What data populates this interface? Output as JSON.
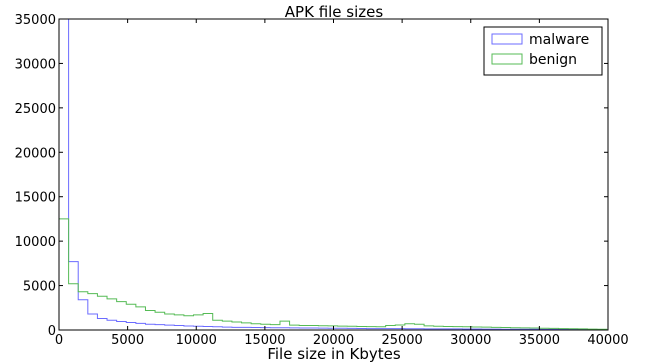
{
  "chart_data": {
    "type": "histogram",
    "title": "APK file sizes",
    "xlabel": "File size in Kbytes",
    "ylabel": "",
    "xlim": [
      0,
      40000
    ],
    "ylim": [
      0,
      35000
    ],
    "xticks": [
      0,
      5000,
      10000,
      15000,
      20000,
      25000,
      30000,
      35000,
      40000
    ],
    "yticks": [
      0,
      5000,
      10000,
      15000,
      20000,
      25000,
      30000,
      35000
    ],
    "grid": false,
    "legend_position": "top-right",
    "bin_width": 700,
    "series": [
      {
        "name": "malware",
        "color": "#6b6bff",
        "values": [
          35000,
          7700,
          3400,
          1800,
          1300,
          1100,
          950,
          850,
          750,
          650,
          600,
          550,
          500,
          450,
          420,
          390,
          360,
          330,
          300,
          290,
          280,
          270,
          260,
          250,
          240,
          230,
          220,
          210,
          200,
          190,
          180,
          170,
          160,
          160,
          150,
          150,
          140,
          140,
          130,
          130,
          120,
          120,
          110,
          110,
          100,
          100,
          90,
          90,
          80,
          80,
          70,
          70,
          60,
          60,
          50,
          50,
          40
        ]
      },
      {
        "name": "benign",
        "color": "#55bb55",
        "values": [
          12500,
          5200,
          4300,
          4100,
          3800,
          3500,
          3200,
          2900,
          2600,
          2200,
          2000,
          1800,
          1700,
          1600,
          1700,
          1850,
          1100,
          1000,
          900,
          800,
          700,
          650,
          600,
          1000,
          550,
          500,
          500,
          480,
          460,
          440,
          420,
          400,
          380,
          360,
          500,
          560,
          700,
          650,
          460,
          420,
          400,
          380,
          360,
          340,
          320,
          300,
          280,
          260,
          240,
          220,
          200,
          180,
          160,
          140,
          120,
          100,
          80
        ]
      }
    ]
  }
}
